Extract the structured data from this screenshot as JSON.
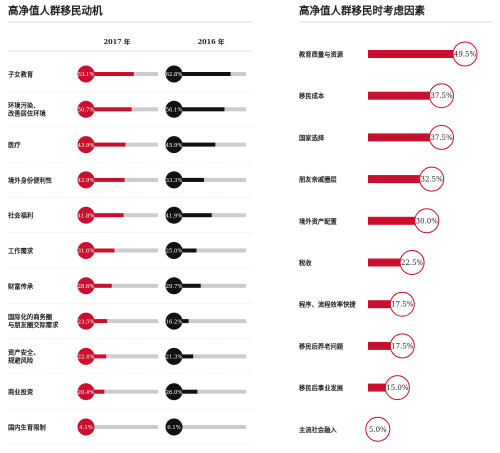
{
  "colors": {
    "accent": "#c8102e",
    "dark": "#111111",
    "track": "#cccccc",
    "text": "#222222",
    "grid": "#cccccc"
  },
  "chart_data": [
    {
      "type": "bar",
      "title": "高净值人群移民动机",
      "xlim": [
        0,
        100
      ],
      "series": [
        {
          "name": "2017 年",
          "values": [
            53.1,
            50.7,
            43.9,
            42.9,
            41.8,
            31.6,
            28.6,
            23.5,
            22.4,
            20.4,
            4.1
          ]
        },
        {
          "name": "2016 年",
          "values": [
            62.8,
            56.1,
            45.9,
            33.3,
            41.9,
            25.0,
            29.7,
            16.2,
            21.3,
            26.0,
            6.1
          ]
        }
      ],
      "categories": [
        [
          "子女教育"
        ],
        [
          "环境污染、",
          "改善居住环境"
        ],
        [
          "医疗"
        ],
        [
          "境外身份便利性"
        ],
        [
          "社会福利"
        ],
        [
          "工作需求"
        ],
        [
          "财富传承"
        ],
        [
          "国际化的商务圈",
          "与朋友圈交际需求"
        ],
        [
          "资产安全、",
          "规避风险"
        ],
        [
          "商业投资"
        ],
        [
          "国内生育限制"
        ]
      ],
      "value_labels": [
        [
          "53.1%",
          "50.7%",
          "43.9%",
          "42.9%",
          "41.8%",
          "31.6%",
          "28.6%",
          "23.5%",
          "22.4%",
          "20.4%",
          "4.1%"
        ],
        [
          "62.8%",
          "56.1%",
          "45.9%",
          "33.3%",
          "41.9%",
          "25.0%",
          "29.7%",
          "16.2%",
          "21.3%",
          "26.0%",
          "6.1%"
        ]
      ]
    },
    {
      "type": "bar",
      "title": "高净值人群移民时考虑因素",
      "xlim": [
        0,
        60
      ],
      "categories": [
        "教育质量与资源",
        "移民成本",
        "国家选择",
        "朋友亲戚圈层",
        "境外资产配置",
        "税收",
        "程序、流程效率快捷",
        "移民后养老问题",
        "移民后事业发展",
        "主流社会融入"
      ],
      "values": [
        49.5,
        37.5,
        37.5,
        32.5,
        30.0,
        22.5,
        17.5,
        17.5,
        15.0,
        5.0
      ],
      "value_labels": [
        "49.5%",
        "37.5%",
        "37.5%",
        "32.5%",
        "30.0%",
        "22.5%",
        "17.5%",
        "17.5%",
        "15.0%",
        "5.0%"
      ]
    }
  ]
}
